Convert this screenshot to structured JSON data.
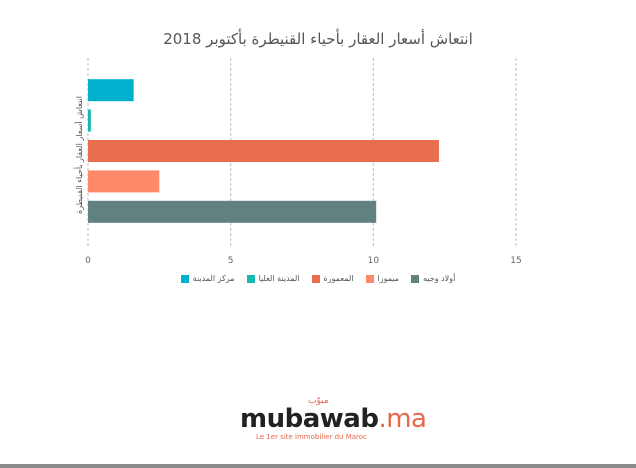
{
  "chart_data": {
    "type": "bar",
    "orientation": "horizontal",
    "title": "انتعاش أسعار العقار بأحياء القنيطرة بأكتوبر 2018",
    "ylabel": "انتعاش أسعار العقار بأحياء القنيطرة",
    "xlim": [
      0,
      15
    ],
    "xticks": [
      0,
      5,
      10,
      15
    ],
    "grid": true,
    "legend_position": "bottom",
    "series": [
      {
        "name": "مركز المدينة",
        "value": 1.6,
        "color": "#00b0cc"
      },
      {
        "name": "المدينة العليا",
        "value": 0.1,
        "color": "#14b8b0"
      },
      {
        "name": "المعمورة",
        "value": 12.3,
        "color": "#e86e4e"
      },
      {
        "name": "ميموزا",
        "value": 2.5,
        "color": "#ff8a6a"
      },
      {
        "name": "أولاد وجيه",
        "value": 10.1,
        "color": "#618080"
      }
    ]
  },
  "logo": {
    "arabic": "مبوّب",
    "name": "mubawab",
    "suffix": ".ma",
    "tagline": "Le 1er site immobilier du Maroc"
  }
}
